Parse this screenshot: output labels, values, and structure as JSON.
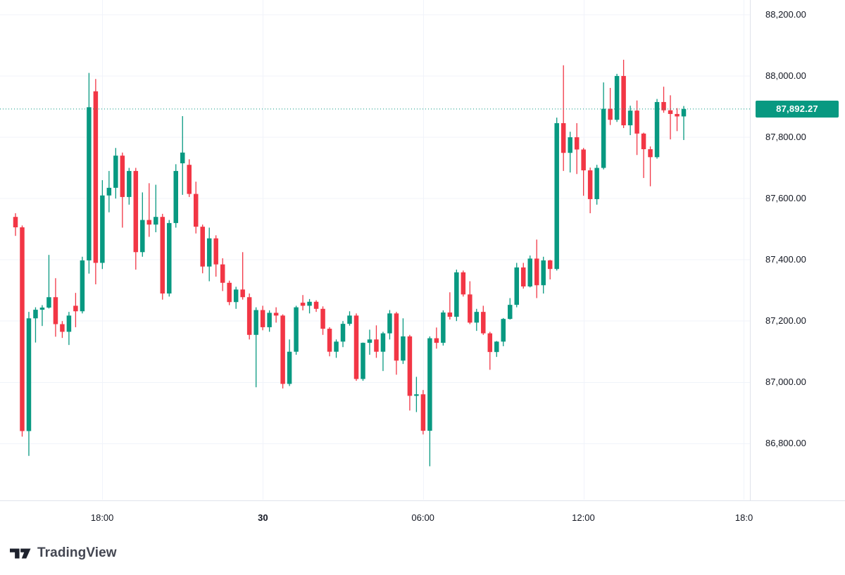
{
  "chart_data": {
    "type": "candlestick",
    "description": "BTC intraday 15-minute candlestick chart",
    "grid": true,
    "up_color": "#089981",
    "down_color": "#F23645",
    "grid_color": "#F0F3FA",
    "ylim": [
      86617,
      88248
    ],
    "y_ticks": [
      {
        "value": 88200,
        "label": "88,200.00"
      },
      {
        "value": 88000,
        "label": "88,000.00"
      },
      {
        "value": 87800,
        "label": "87,800.00"
      },
      {
        "value": 87600,
        "label": "87,600.00"
      },
      {
        "value": 87400,
        "label": "87,400.00"
      },
      {
        "value": 87200,
        "label": "87,200.00"
      },
      {
        "value": 87000,
        "label": "87,000.00"
      },
      {
        "value": 86800,
        "label": "86,800.00"
      }
    ],
    "x_ticks": [
      {
        "index": 13,
        "label": "18:00",
        "bold": false
      },
      {
        "index": 37,
        "label": "30",
        "bold": true
      },
      {
        "index": 61,
        "label": "06:00",
        "bold": false
      },
      {
        "index": 85,
        "label": "12:00",
        "bold": false
      },
      {
        "index": 109,
        "label": "18:0",
        "bold": false
      }
    ],
    "ohlc": [
      [
        87540,
        87552,
        87478,
        87506
      ],
      [
        87506,
        87512,
        86823,
        86841
      ],
      [
        86841,
        87230,
        86760,
        87209
      ],
      [
        87209,
        87245,
        87130,
        87237
      ],
      [
        87237,
        87252,
        87184,
        87244
      ],
      [
        87244,
        87416,
        87241,
        87278
      ],
      [
        87278,
        87340,
        87149,
        87190
      ],
      [
        87190,
        87200,
        87145,
        87165
      ],
      [
        87165,
        87230,
        87122,
        87218
      ],
      [
        87250,
        87292,
        87180,
        87232
      ],
      [
        87232,
        87410,
        87225,
        87398
      ],
      [
        87398,
        88010,
        87355,
        87898
      ],
      [
        87950,
        87990,
        87320,
        87390
      ],
      [
        87390,
        87660,
        87370,
        87610
      ],
      [
        87610,
        87690,
        87555,
        87635
      ],
      [
        87635,
        87765,
        87600,
        87740
      ],
      [
        87740,
        87750,
        87505,
        87605
      ],
      [
        87605,
        87700,
        87580,
        87690
      ],
      [
        87690,
        87700,
        87368,
        87425
      ],
      [
        87425,
        87620,
        87410,
        87530
      ],
      [
        87530,
        87650,
        87475,
        87515
      ],
      [
        87515,
        87645,
        87490,
        87540
      ],
      [
        87540,
        87550,
        87270,
        87290
      ],
      [
        87290,
        87530,
        87280,
        87520
      ],
      [
        87520,
        87712,
        87505,
        87690
      ],
      [
        87715,
        87869,
        87612,
        87750
      ],
      [
        87710,
        87728,
        87605,
        87615
      ],
      [
        87615,
        87655,
        87486,
        87508
      ],
      [
        87508,
        87515,
        87356,
        87378
      ],
      [
        87378,
        87505,
        87330,
        87470
      ],
      [
        87470,
        87480,
        87345,
        87385
      ],
      [
        87385,
        87405,
        87298,
        87325
      ],
      [
        87325,
        87332,
        87252,
        87262
      ],
      [
        87262,
        87312,
        87240,
        87303
      ],
      [
        87303,
        87425,
        87270,
        87278
      ],
      [
        87278,
        87290,
        87140,
        87155
      ],
      [
        87155,
        87245,
        86984,
        87236
      ],
      [
        87236,
        87250,
        87170,
        87180
      ],
      [
        87180,
        87235,
        87165,
        87227
      ],
      [
        87227,
        87245,
        87195,
        87218
      ],
      [
        87218,
        87222,
        86980,
        86995
      ],
      [
        86995,
        87140,
        86988,
        87100
      ],
      [
        87100,
        87250,
        87090,
        87245
      ],
      [
        87260,
        87285,
        87235,
        87250
      ],
      [
        87250,
        87272,
        87225,
        87263
      ],
      [
        87263,
        87268,
        87230,
        87240
      ],
      [
        87240,
        87248,
        87155,
        87175
      ],
      [
        87175,
        87180,
        87085,
        87100
      ],
      [
        87100,
        87140,
        87080,
        87133
      ],
      [
        87133,
        87200,
        87115,
        87191
      ],
      [
        87191,
        87232,
        87185,
        87218
      ],
      [
        87218,
        87225,
        87005,
        87011
      ],
      [
        87011,
        87130,
        87005,
        87129
      ],
      [
        87129,
        87172,
        87090,
        87140
      ],
      [
        87140,
        87186,
        87080,
        87100
      ],
      [
        87100,
        87165,
        87037,
        87160
      ],
      [
        87160,
        87236,
        87140,
        87225
      ],
      [
        87225,
        87230,
        87025,
        87071
      ],
      [
        87071,
        87209,
        87060,
        87150
      ],
      [
        87150,
        87155,
        86908,
        86956
      ],
      [
        86956,
        87018,
        86903,
        86961
      ],
      [
        86961,
        86975,
        86830,
        86842
      ],
      [
        86842,
        87150,
        86726,
        87144
      ],
      [
        87144,
        87179,
        87110,
        87129
      ],
      [
        87129,
        87235,
        87120,
        87228
      ],
      [
        87228,
        87294,
        87205,
        87214
      ],
      [
        87214,
        87368,
        87200,
        87359
      ],
      [
        87359,
        87365,
        87280,
        87287
      ],
      [
        87287,
        87330,
        87190,
        87195
      ],
      [
        87195,
        87240,
        87168,
        87230
      ],
      [
        87230,
        87250,
        87155,
        87160
      ],
      [
        87160,
        87165,
        87041,
        87099
      ],
      [
        87099,
        87135,
        87083,
        87133
      ],
      [
        87133,
        87210,
        87118,
        87207
      ],
      [
        87207,
        87275,
        87205,
        87253
      ],
      [
        87253,
        87390,
        87245,
        87375
      ],
      [
        87375,
        87390,
        87306,
        87313
      ],
      [
        87313,
        87414,
        87310,
        87404
      ],
      [
        87404,
        87466,
        87275,
        87317
      ],
      [
        87317,
        87410,
        87290,
        87398
      ],
      [
        87398,
        87400,
        87336,
        87370
      ],
      [
        87370,
        87864,
        87365,
        87846
      ],
      [
        87846,
        88035,
        87690,
        87749
      ],
      [
        87749,
        87818,
        87685,
        87800
      ],
      [
        87800,
        87846,
        87680,
        87760
      ],
      [
        87760,
        87765,
        87609,
        87692
      ],
      [
        87692,
        87701,
        87552,
        87598
      ],
      [
        87598,
        87710,
        87580,
        87700
      ],
      [
        87700,
        87979,
        87695,
        87893
      ],
      [
        87893,
        87961,
        87840,
        87857
      ],
      [
        87857,
        88007,
        87850,
        88000
      ],
      [
        88000,
        88053,
        87830,
        87839
      ],
      [
        87839,
        87903,
        87807,
        87887
      ],
      [
        87887,
        87920,
        87742,
        87812
      ],
      [
        87812,
        87815,
        87667,
        87761
      ],
      [
        87761,
        87770,
        87640,
        87735
      ],
      [
        87735,
        87925,
        87730,
        87915
      ],
      [
        87915,
        87965,
        87880,
        87888
      ],
      [
        87888,
        87937,
        87793,
        87876
      ],
      [
        87876,
        87895,
        87820,
        87868
      ],
      [
        87868,
        87902,
        87791,
        87892.27
      ]
    ]
  },
  "current_price": {
    "value": 87892.27,
    "label": "87,892.27",
    "line_color": "#089981",
    "badge_bg": "#089981",
    "badge_text_color": "#FFFFFF"
  },
  "branding": {
    "name": "TradingView"
  }
}
